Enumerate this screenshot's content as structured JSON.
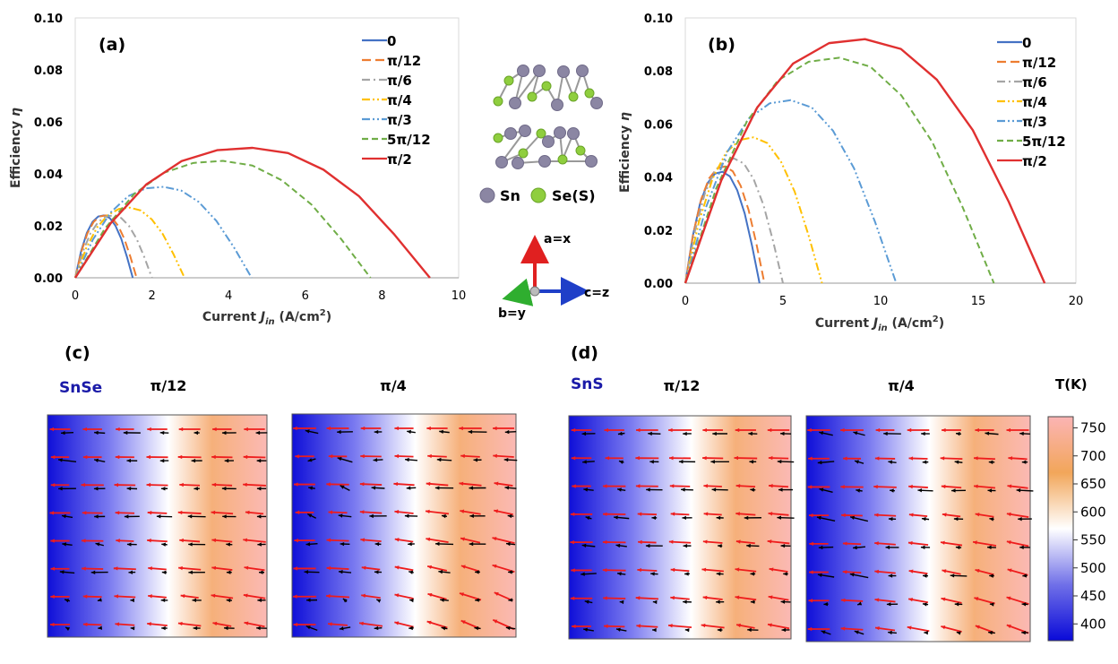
{
  "chart_data": [
    {
      "panel": "(a)",
      "type": "line",
      "xlabel": "Current J_in (A/cm²)",
      "ylabel": "Efficiency η",
      "xlim": [
        0,
        10
      ],
      "ylim": [
        0,
        0.1
      ],
      "x_ticks": [
        "0",
        "2",
        "4",
        "6",
        "8",
        "10"
      ],
      "y_ticks": [
        "0.00",
        "0.02",
        "0.04",
        "0.06",
        "0.08",
        "0.10"
      ],
      "legend_position": "top-right",
      "series": [
        {
          "name": "0",
          "color": "#4472c4",
          "dash": "solid",
          "x": [
            0,
            0.15,
            0.3,
            0.45,
            0.6,
            0.75,
            0.9,
            1.05,
            1.2,
            1.35,
            1.5
          ],
          "y": [
            0,
            0.0101,
            0.0172,
            0.0215,
            0.0236,
            0.024,
            0.023,
            0.02,
            0.015,
            0.008,
            0
          ]
        },
        {
          "name": "π/12",
          "color": "#ed7d31",
          "dash": "long-dash",
          "x": [
            0,
            0.16,
            0.32,
            0.48,
            0.64,
            0.8,
            0.96,
            1.12,
            1.28,
            1.44,
            1.6
          ],
          "y": [
            0,
            0.0101,
            0.0172,
            0.0215,
            0.0236,
            0.024,
            0.023,
            0.02,
            0.015,
            0.008,
            0
          ]
        },
        {
          "name": "π/6",
          "color": "#a5a5a5",
          "dash": "dash-dot",
          "x": [
            0,
            0.2,
            0.4,
            0.6,
            0.8,
            1.0,
            1.2,
            1.4,
            1.6,
            1.8,
            2.0
          ],
          "y": [
            0,
            0.0101,
            0.0172,
            0.0215,
            0.0236,
            0.024,
            0.023,
            0.02,
            0.015,
            0.008,
            0
          ]
        },
        {
          "name": "π/4",
          "color": "#ffc000",
          "dash": "dash-dot-dot",
          "x": [
            0,
            0.285,
            0.57,
            0.855,
            1.14,
            1.425,
            1.71,
            1.995,
            2.28,
            2.565,
            2.85
          ],
          "y": [
            0,
            0.0114,
            0.0194,
            0.0242,
            0.0265,
            0.027,
            0.0259,
            0.0225,
            0.0169,
            0.009,
            0
          ]
        },
        {
          "name": "π/3",
          "color": "#5b9bd5",
          "dash": "dash-dot-dot",
          "x": [
            0,
            0.46,
            0.92,
            1.38,
            1.84,
            2.3,
            2.76,
            3.22,
            3.68,
            4.14,
            4.6
          ],
          "y": [
            0,
            0.0147,
            0.0251,
            0.0314,
            0.0344,
            0.035,
            0.0336,
            0.0292,
            0.0219,
            0.0117,
            0
          ]
        },
        {
          "name": "5π/12",
          "color": "#70ad47",
          "dash": "dash",
          "x": [
            0,
            0.77,
            1.54,
            2.31,
            3.08,
            3.85,
            4.62,
            5.39,
            6.16,
            6.93,
            7.7
          ],
          "y": [
            0,
            0.0189,
            0.0323,
            0.0404,
            0.0442,
            0.045,
            0.0432,
            0.0375,
            0.0282,
            0.015,
            0
          ]
        },
        {
          "name": "π/2",
          "color": "#e03030",
          "dash": "solid",
          "x": [
            0,
            0.925,
            1.85,
            2.775,
            3.7,
            4.625,
            5.55,
            6.475,
            7.4,
            8.325,
            9.25
          ],
          "y": [
            0,
            0.021,
            0.0359,
            0.0449,
            0.0491,
            0.05,
            0.048,
            0.0416,
            0.0314,
            0.0166,
            0
          ]
        }
      ]
    },
    {
      "panel": "(b)",
      "type": "line",
      "xlabel": "Current J_in (A/cm²)",
      "ylabel": "Efficiency η",
      "xlim": [
        0,
        20
      ],
      "ylim": [
        0,
        0.1
      ],
      "x_ticks": [
        "0",
        "5",
        "10",
        "15",
        "20"
      ],
      "y_ticks": [
        "0.00",
        "0.02",
        "0.04",
        "0.06",
        "0.08",
        "0.10"
      ],
      "legend_position": "top-right",
      "series": [
        {
          "name": "0",
          "color": "#4472c4",
          "dash": "solid",
          "x": [
            0,
            0.38,
            0.76,
            1.14,
            1.52,
            1.9,
            2.28,
            2.66,
            3.04,
            3.42,
            3.8
          ],
          "y": [
            0,
            0.0177,
            0.0302,
            0.0377,
            0.0413,
            0.042,
            0.0403,
            0.035,
            0.0263,
            0.014,
            0
          ]
        },
        {
          "name": "π/12",
          "color": "#ed7d31",
          "dash": "long-dash",
          "x": [
            0,
            0.405,
            0.81,
            1.215,
            1.62,
            2.025,
            2.43,
            2.835,
            3.24,
            3.645,
            4.05
          ],
          "y": [
            0,
            0.0185,
            0.0316,
            0.0395,
            0.0432,
            0.044,
            0.0422,
            0.0367,
            0.0276,
            0.0147,
            0
          ]
        },
        {
          "name": "π/6",
          "color": "#a5a5a5",
          "dash": "dash-dot",
          "x": [
            0,
            0.5,
            1.0,
            1.5,
            2.0,
            2.5,
            3.0,
            3.5,
            4.0,
            4.5,
            5.0
          ],
          "y": [
            0,
            0.0198,
            0.0338,
            0.0422,
            0.0461,
            0.047,
            0.0451,
            0.0392,
            0.0295,
            0.0157,
            0
          ]
        },
        {
          "name": "π/4",
          "color": "#ffc000",
          "dash": "dash-dot-dot",
          "x": [
            0,
            0.7,
            1.4,
            2.1,
            2.8,
            3.5,
            4.2,
            4.9,
            5.6,
            6.3,
            7.0
          ],
          "y": [
            0,
            0.0232,
            0.0395,
            0.0494,
            0.054,
            0.055,
            0.0528,
            0.0458,
            0.0345,
            0.0183,
            0
          ]
        },
        {
          "name": "π/3",
          "color": "#5b9bd5",
          "dash": "dash-dot-dot",
          "x": [
            0,
            1.08,
            2.16,
            3.24,
            4.32,
            5.4,
            6.48,
            7.56,
            8.64,
            9.72,
            10.8
          ],
          "y": [
            0,
            0.029,
            0.0496,
            0.062,
            0.0678,
            0.069,
            0.0662,
            0.0575,
            0.0433,
            0.023,
            0
          ]
        },
        {
          "name": "5π/12",
          "color": "#70ad47",
          "dash": "dash",
          "x": [
            0,
            1.58,
            3.16,
            4.74,
            6.32,
            7.9,
            9.48,
            11.06,
            12.64,
            14.22,
            15.8
          ],
          "y": [
            0,
            0.0357,
            0.0611,
            0.0764,
            0.0835,
            0.085,
            0.0816,
            0.0708,
            0.0533,
            0.0283,
            0
          ]
        },
        {
          "name": "π/2",
          "color": "#e03030",
          "dash": "solid",
          "x": [
            0,
            1.84,
            3.68,
            5.52,
            7.36,
            9.2,
            11.04,
            12.88,
            14.72,
            16.56,
            18.4
          ],
          "y": [
            0,
            0.0387,
            0.0662,
            0.0828,
            0.0905,
            0.092,
            0.0883,
            0.0767,
            0.0577,
            0.0307,
            0
          ]
        }
      ]
    }
  ],
  "panels": {
    "a": {
      "label": "(a)"
    },
    "b": {
      "label": "(b)"
    },
    "c": {
      "label": "(c)",
      "material": "SnSe",
      "maps": [
        "π/12",
        "π/4"
      ]
    },
    "d": {
      "label": "(d)",
      "material": "SnS",
      "maps": [
        "π/12",
        "π/4"
      ]
    }
  },
  "structure": {
    "legend_sn": "Sn",
    "legend_se": "Se(S)",
    "axis_a": "a=x",
    "axis_b": "b=y",
    "axis_c": "c=z",
    "sn_color": "#8b86a3",
    "se_color": "#8fce3e"
  },
  "colorbar": {
    "title": "T(K)",
    "range": [
      370,
      770
    ],
    "ticks": [
      "400",
      "450",
      "500",
      "550",
      "600",
      "650",
      "700",
      "750"
    ],
    "colors": [
      "#0a0ad8",
      "#7070e8",
      "#ffffff",
      "#f2a65a",
      "#fbb4b4"
    ]
  },
  "heatmap_color": {
    "cold": "#0f0fd8",
    "hot": "#fbb9b4"
  },
  "arrow_colors": {
    "red": "#ee1c1c",
    "black": "#000000"
  }
}
